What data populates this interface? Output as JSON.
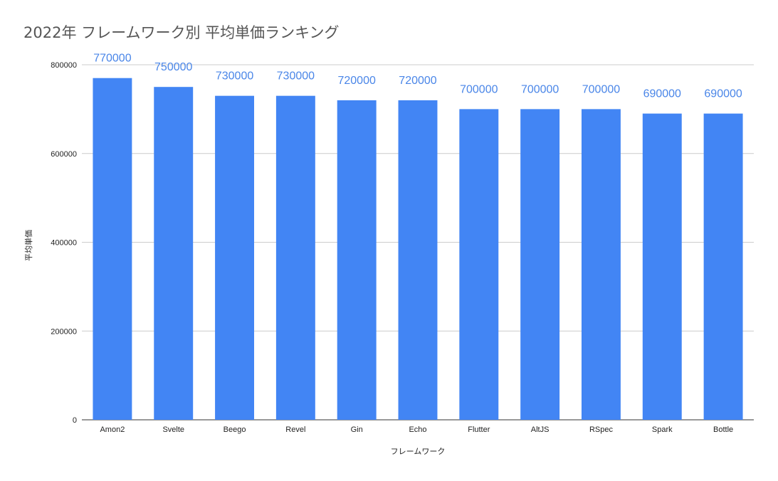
{
  "chart_data": {
    "type": "bar",
    "title": "2022年 フレームワーク別 平均単価ランキング",
    "xlabel": "フレームワーク",
    "ylabel": "平均単価",
    "categories": [
      "Amon2",
      "Svelte",
      "Beego",
      "Revel",
      "Gin",
      "Echo",
      "Flutter",
      "AltJS",
      "RSpec",
      "Spark",
      "Bottle"
    ],
    "values": [
      770000,
      750000,
      730000,
      730000,
      720000,
      720000,
      700000,
      700000,
      700000,
      690000,
      690000
    ],
    "data_labels": [
      "770000",
      "750000",
      "730000",
      "730000",
      "720000",
      "720000",
      "700000",
      "700000",
      "700000",
      "690000",
      "690000"
    ],
    "ylim": [
      0,
      800000
    ],
    "yticks": [
      "0",
      "200000",
      "400000",
      "600000",
      "800000"
    ],
    "grid": true,
    "legend": "none",
    "bar_color": "#4285f4",
    "label_color": "#4a86e8"
  }
}
